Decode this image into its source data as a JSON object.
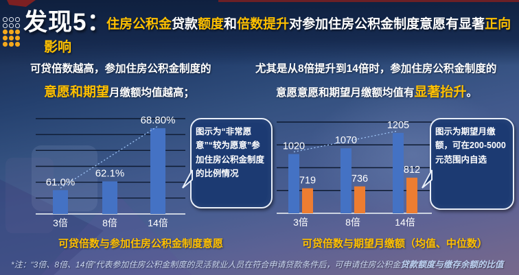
{
  "headline": {
    "finding_label": "发现5：",
    "line1_segments": [
      {
        "t": "住房公积金",
        "c": "accent"
      },
      {
        "t": "贷款",
        "c": "plain"
      },
      {
        "t": "额度",
        "c": "accent"
      },
      {
        "t": "和",
        "c": "plain"
      },
      {
        "t": "倍数提升",
        "c": "accent"
      },
      {
        "t": "对参加住房公积金制度意愿有显著",
        "c": "plain"
      },
      {
        "t": "正向",
        "c": "accent"
      }
    ],
    "line2": "影响"
  },
  "insight_left": {
    "line1": "可贷倍数越高，参加住房公积金制度的",
    "line2_segments": [
      {
        "t": "意愿和期望",
        "c": "accent-big"
      },
      {
        "t": "月缴额均值越高；",
        "c": "plain"
      }
    ]
  },
  "insight_right": {
    "line1": "尤其是从8倍提升到14倍时，参加住房公积金制度的",
    "line2_segments": [
      {
        "t": "意愿意愿和期望月缴额均值有",
        "c": "plain"
      },
      {
        "t": "显著抬升",
        "c": "accent-big"
      },
      {
        "t": "。",
        "c": "plain"
      }
    ]
  },
  "callouts": {
    "left": "图示为“非常愿意”“较为愿意”参加住房公积金制度的比例情况",
    "right": "图示为期望月缴额，可在200-5000元范围内自选"
  },
  "chart_data": [
    {
      "type": "bar",
      "title": "可贷倍数与参加住房公积金制度意愿",
      "categories": [
        "3倍",
        "8倍",
        "14倍"
      ],
      "values": [
        61.0,
        62.1,
        68.8
      ],
      "labels": [
        "61.0%",
        "62.1%",
        "68.80%"
      ],
      "ylim": [
        58,
        70
      ],
      "grid_step": 2,
      "trendline": true,
      "bar_color": "#4472c4",
      "legend": "none",
      "grid": "on"
    },
    {
      "type": "bar",
      "title": "可贷倍数与期望月缴额（均值、中位数）",
      "categories": [
        "3倍",
        "8倍",
        "14倍"
      ],
      "series": [
        {
          "name": "均值",
          "color": "#4472c4",
          "values": [
            1020,
            1070,
            1205
          ],
          "labels": [
            "1020",
            "1070",
            "1205"
          ]
        },
        {
          "name": "中位数",
          "color": "#ed7d31",
          "values": [
            719,
            736,
            812
          ],
          "labels": [
            "719",
            "736",
            "812"
          ]
        }
      ],
      "ylim": [
        500,
        1300
      ],
      "grid_step": 200,
      "trendline": true,
      "legend": "none",
      "grid": "on"
    }
  ],
  "footnote": {
    "regular": "*注：“3倍、8倍、14倍”代表参加住房公积金制度的灵活就业人员在符合申请贷款条件后，可申请住房公积金",
    "bold": "贷款额度与缴存余额的比值"
  },
  "colors": {
    "accent_yellow": "#ffc000",
    "bar_blue": "#4472c4",
    "bar_orange": "#ed7d31",
    "gridline": "#0e1a30",
    "baseline": "#ccd3e0",
    "trendline": "#9fc5f8",
    "bubble_fill": "#1c3a72",
    "bubble_border": "#e9eff9",
    "red_accent": "#7c2022"
  }
}
